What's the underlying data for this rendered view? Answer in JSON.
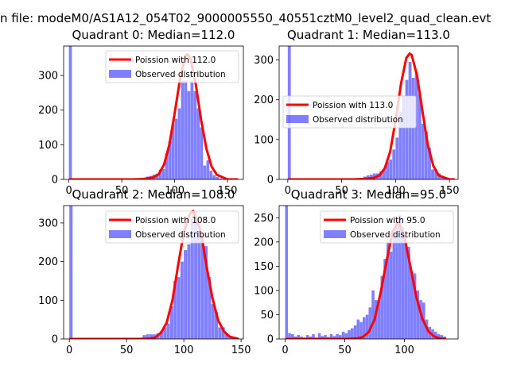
{
  "window": {
    "title": "n file: modeM0/AS1A12_054T02_9000005550_40551cztM0_level2_quad_clean.evt"
  },
  "colors": {
    "poisson_line": "#ff0000",
    "observed_bars": "#8080ff",
    "axes": "#000000",
    "background": "#ffffff"
  },
  "chart_data": [
    {
      "type": "bar",
      "title": "Quadrant 0: Median=112.0",
      "xlim": [
        -5,
        165
      ],
      "ylim": [
        0,
        385
      ],
      "xticks": [
        0,
        50,
        100,
        150
      ],
      "yticks": [
        0,
        100,
        200,
        300
      ],
      "legend_position": "upper-right",
      "series": [
        {
          "name": "Poission with 112.0",
          "kind": "line",
          "x": [
            0,
            60,
            70,
            80,
            85,
            90,
            95,
            100,
            105,
            110,
            112,
            115,
            120,
            125,
            130,
            135,
            140,
            150,
            160
          ],
          "y": [
            0,
            0,
            1,
            6,
            15,
            43,
            100,
            191,
            287,
            356,
            361,
            350,
            274,
            173,
            89,
            37,
            13,
            0,
            0
          ]
        },
        {
          "name": "Observed distribution",
          "kind": "bar",
          "bin_width": 2.8,
          "bins": [
            0,
            64,
            67,
            70,
            73,
            76,
            79,
            82,
            85,
            88,
            91,
            94,
            97,
            100,
            103,
            106,
            109,
            112,
            115,
            118,
            121,
            124,
            127,
            130,
            133,
            136,
            139,
            142
          ],
          "counts": [
            385,
            3,
            4,
            5,
            8,
            10,
            14,
            17,
            28,
            30,
            75,
            110,
            160,
            175,
            205,
            285,
            285,
            255,
            285,
            255,
            205,
            150,
            40,
            55,
            25,
            12,
            7,
            3
          ]
        }
      ]
    },
    {
      "type": "bar",
      "title": "Quadrant 1: Median=113.0",
      "xlim": [
        -8,
        158
      ],
      "ylim": [
        0,
        335
      ],
      "xticks": [
        0,
        50,
        100,
        150
      ],
      "yticks": [
        0,
        100,
        200,
        300
      ],
      "legend_position": "center-left",
      "series": [
        {
          "name": "Poission with 113.0",
          "kind": "line",
          "x": [
            0,
            60,
            70,
            80,
            85,
            90,
            95,
            100,
            105,
            110,
            113,
            115,
            120,
            125,
            130,
            135,
            140,
            150,
            155
          ],
          "y": [
            0,
            0,
            1,
            4,
            10,
            28,
            70,
            148,
            240,
            305,
            316,
            312,
            260,
            170,
            86,
            34,
            10,
            0,
            0
          ]
        },
        {
          "name": "Observed distribution",
          "kind": "bar",
          "bin_width": 2.8,
          "bins": [
            0,
            64,
            67,
            70,
            73,
            76,
            79,
            82,
            85,
            88,
            91,
            94,
            97,
            100,
            103,
            106,
            109,
            112,
            115,
            118,
            121,
            124,
            127,
            130,
            133,
            136,
            139,
            142,
            145
          ],
          "counts": [
            335,
            3,
            4,
            7,
            10,
            12,
            15,
            15,
            20,
            25,
            45,
            50,
            75,
            105,
            170,
            210,
            250,
            295,
            255,
            270,
            215,
            140,
            120,
            80,
            25,
            25,
            15,
            5,
            2
          ]
        }
      ]
    },
    {
      "type": "bar",
      "title": "Quadrant 2: Median=108.0",
      "xlim": [
        -5,
        152
      ],
      "ylim": [
        0,
        345
      ],
      "xticks": [
        0,
        50,
        100,
        150
      ],
      "yticks": [
        0,
        100,
        200,
        300
      ],
      "legend_position": "upper-right",
      "series": [
        {
          "name": "Poission with 108.0",
          "kind": "line",
          "x": [
            0,
            60,
            70,
            75,
            80,
            85,
            90,
            95,
            100,
            105,
            108,
            110,
            115,
            120,
            125,
            130,
            135,
            140,
            148
          ],
          "y": [
            0,
            0,
            1,
            4,
            16,
            42,
            100,
            190,
            276,
            322,
            331,
            320,
            276,
            186,
            106,
            48,
            20,
            6,
            0
          ]
        },
        {
          "name": "Observed distribution",
          "kind": "bar",
          "bin_width": 2.8,
          "bins": [
            0,
            64,
            67,
            70,
            73,
            76,
            79,
            82,
            85,
            88,
            91,
            94,
            97,
            100,
            103,
            106,
            109,
            112,
            115,
            118,
            121,
            124,
            127,
            130,
            133,
            136,
            139
          ],
          "counts": [
            345,
            10,
            12,
            12,
            12,
            15,
            20,
            30,
            40,
            85,
            150,
            160,
            200,
            230,
            245,
            310,
            305,
            280,
            275,
            240,
            160,
            90,
            70,
            30,
            30,
            12,
            5
          ]
        }
      ]
    },
    {
      "type": "bar",
      "title": "Quadrant 3: Median=95.0",
      "xlim": [
        -5,
        145
      ],
      "ylim": [
        0,
        275
      ],
      "xticks": [
        0,
        50,
        100
      ],
      "yticks": [
        0,
        50,
        100,
        150,
        200,
        250
      ],
      "legend_position": "upper-right",
      "series": [
        {
          "name": "Poission with 95.0",
          "kind": "line",
          "x": [
            0,
            50,
            60,
            65,
            70,
            75,
            80,
            85,
            90,
            95,
            100,
            105,
            110,
            115,
            120,
            125,
            130,
            135
          ],
          "y": [
            0,
            0,
            1,
            4,
            14,
            40,
            95,
            160,
            220,
            242,
            210,
            150,
            86,
            42,
            16,
            5,
            1,
            0
          ]
        },
        {
          "name": "Observed distribution",
          "kind": "bar",
          "bin_width": 2.4,
          "bins": [
            0,
            2.5,
            5,
            7.5,
            10,
            12.5,
            15,
            17.5,
            20,
            22.5,
            25,
            27.5,
            30,
            32.5,
            35,
            37.5,
            40,
            42.5,
            45,
            47.5,
            50,
            52.5,
            55,
            57.5,
            60,
            62.5,
            65,
            67.5,
            70,
            72.5,
            75,
            77.5,
            80,
            82.5,
            85,
            87.5,
            90,
            92.5,
            95,
            97.5,
            100,
            102.5,
            105,
            107.5,
            110,
            112.5,
            115,
            117.5,
            120,
            122.5,
            125,
            127.5,
            130,
            132.5
          ],
          "counts": [
            275,
            12,
            10,
            5,
            8,
            5,
            3,
            8,
            5,
            10,
            3,
            12,
            6,
            8,
            4,
            10,
            6,
            10,
            8,
            15,
            12,
            18,
            22,
            28,
            40,
            35,
            45,
            50,
            65,
            100,
            80,
            80,
            130,
            165,
            200,
            180,
            220,
            230,
            255,
            230,
            200,
            190,
            140,
            135,
            100,
            80,
            75,
            40,
            25,
            20,
            15,
            10,
            8,
            5
          ]
        }
      ]
    }
  ]
}
